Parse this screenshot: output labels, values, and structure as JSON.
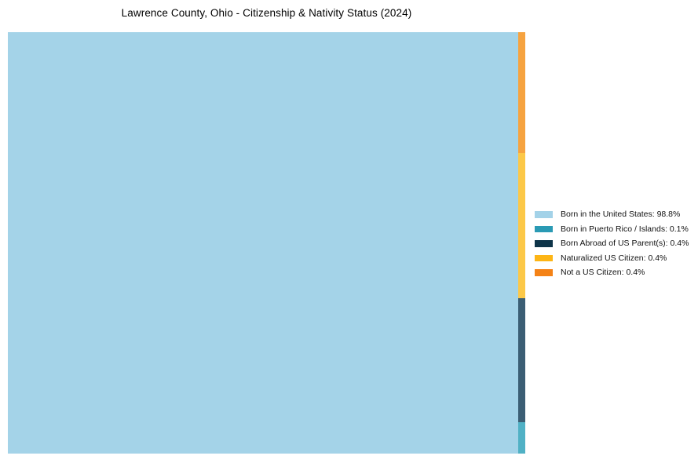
{
  "title": "Lawrence County, Ohio - Citizenship & Nativity Status (2024)",
  "chart_data": {
    "type": "treemap",
    "title": "Lawrence County, Ohio - Citizenship & Nativity Status (2024)",
    "categories": [
      "Born in the United States",
      "Born in Puerto Rico / Islands",
      "Born Abroad of US Parent(s)",
      "Naturalized US Citizen",
      "Not a US Citizen"
    ],
    "values": [
      98.8,
      0.1,
      0.4,
      0.4,
      0.4
    ],
    "unit": "%",
    "legend_position": "right",
    "grid": false,
    "tile_order_right_strip_top_to_bottom": [
      "Not a US Citizen",
      "Naturalized US Citizen",
      "Born Abroad of US Parent(s)",
      "Born in Puerto Rico / Islands"
    ]
  },
  "colors": {
    "background": "#ffffff",
    "title_text": "#000000",
    "legend_text": "#111111",
    "legend_born_us": "#a3d2e8",
    "legend_puerto_rico": "#2a9ab4",
    "legend_born_abroad": "#0e3449",
    "legend_naturalized": "#fdb515",
    "legend_not_citizen": "#f48216",
    "tile_born_us": "#a4d3e8",
    "tile_not_citizen": "#f6a340",
    "tile_naturalized": "#fcc848",
    "tile_born_abroad": "#3b5e74",
    "tile_puerto_rico": "#50b1c5"
  },
  "legend": {
    "items": [
      {
        "label": "Born in the United States: 98.8%"
      },
      {
        "label": "Born in Puerto Rico / Islands: 0.1%"
      },
      {
        "label": "Born Abroad of US Parent(s): 0.4%"
      },
      {
        "label": "Naturalized US Citizen: 0.4%"
      },
      {
        "label": "Not a US Citizen: 0.4%"
      }
    ]
  }
}
